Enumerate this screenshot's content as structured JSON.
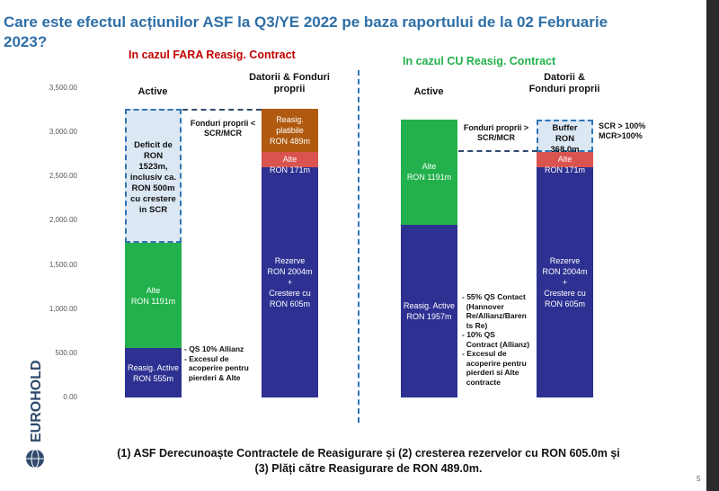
{
  "title": "Care este efectul acțiunilor ASF la Q3/YE 2022 pe baza raportului de la 02 Februarie 2023?",
  "left_scenario": {
    "label": "In cazul FARA Reasig. Contract",
    "color": "#c00000"
  },
  "right_scenario": {
    "label": "In cazul CU Reasig. Contract",
    "color": "#22b14c"
  },
  "colors": {
    "navy": "#2e3192",
    "green": "#22b14c",
    "red": "#d9534f",
    "brown": "#b05a10",
    "dashed": "#2e75b6"
  },
  "footer": {
    "line1": "(1) ASF Derecunoaște Contractele de Reasigurare și (2) cresterea rezervelor cu RON 605.0m și",
    "line2": "(3) Plăți către Reasigurare de RON 489.0m."
  },
  "logo_text": "EUROHOLD",
  "page_number": "5",
  "chart_data": {
    "type": "bar",
    "ylim": [
      0,
      3500
    ],
    "y_ticks": [
      "3,500.00",
      "3,000.00",
      "2,500.00",
      "2,000.00",
      "1,500.00",
      "1,000.00",
      "500.00",
      "0.00"
    ],
    "y_tick_values": [
      3500,
      3000,
      2500,
      2000,
      1500,
      1000,
      500,
      0
    ],
    "columns": [
      {
        "header": "Active",
        "segments": [
          {
            "start": 0,
            "end": 555,
            "color": "#2e3192",
            "label": "Reasig. Active\nRON 555m"
          },
          {
            "start": 555,
            "end": 1746,
            "color": "#22b14c",
            "label": "Alte\nRON 1191m"
          },
          {
            "start": 1746,
            "end": 3269,
            "color": "#dbe7f3",
            "dashed": true,
            "label": "Deficit de\nRON\n1523m,\ninclusiv ca.\nRON 500m\ncu crestere\nin SCR"
          }
        ]
      },
      {
        "header": "Datorii & Fonduri\nproprii",
        "segments": [
          {
            "start": 0,
            "end": 2609,
            "color": "#2e3192",
            "label": "Rezerve\nRON 2004m\n+\nCrestere cu\nRON 605m"
          },
          {
            "start": 2609,
            "end": 2780,
            "color": "#d9534f",
            "label": "Alte\nRON 171m"
          },
          {
            "start": 2780,
            "end": 3269,
            "color": "#b05a10",
            "label": "Reasig.\nplatibile\nRON 489m"
          }
        ]
      },
      {
        "header": "Active",
        "segments": [
          {
            "start": 0,
            "end": 1957,
            "color": "#2e3192",
            "label": "Reasig. Active\nRON 1957m"
          },
          {
            "start": 1957,
            "end": 3148,
            "color": "#22b14c",
            "label": "Alte\nRON 1191m"
          }
        ]
      },
      {
        "header": "Datorii &\nFonduri proprii",
        "segments": [
          {
            "start": 0,
            "end": 2609,
            "color": "#2e3192",
            "label": "Rezerve\nRON 2004m\n+\nCrestere cu\nRON 605m"
          },
          {
            "start": 2609,
            "end": 2780,
            "color": "#d9534f",
            "label": "Alte\nRON 171m"
          },
          {
            "start": 2780,
            "end": 3148,
            "color": "#dbe7f3",
            "dashed": true,
            "label": "Buffer\nRON\n368.0m"
          }
        ]
      }
    ],
    "annotations": {
      "fp_left": "Fonduri proprii <\nSCR/MCR",
      "fp_right": "Fonduri proprii >\nSCR/MCR",
      "scr": "SCR > 100%\nMCR>100%",
      "notes_left": "- QS 10% Allianz\n- Excesul de\n  acoperire pentru\n  pierderi & Alte",
      "notes_right": "- 55% QS Contact\n  (Hannover\n  Re/Allianz/Baren\n  ts Re)\n- 10% QS\n  Contract (Allianz)\n- Excesul de\n  acoperire pentru\n  pierderi si Alte\n  contracte"
    }
  }
}
